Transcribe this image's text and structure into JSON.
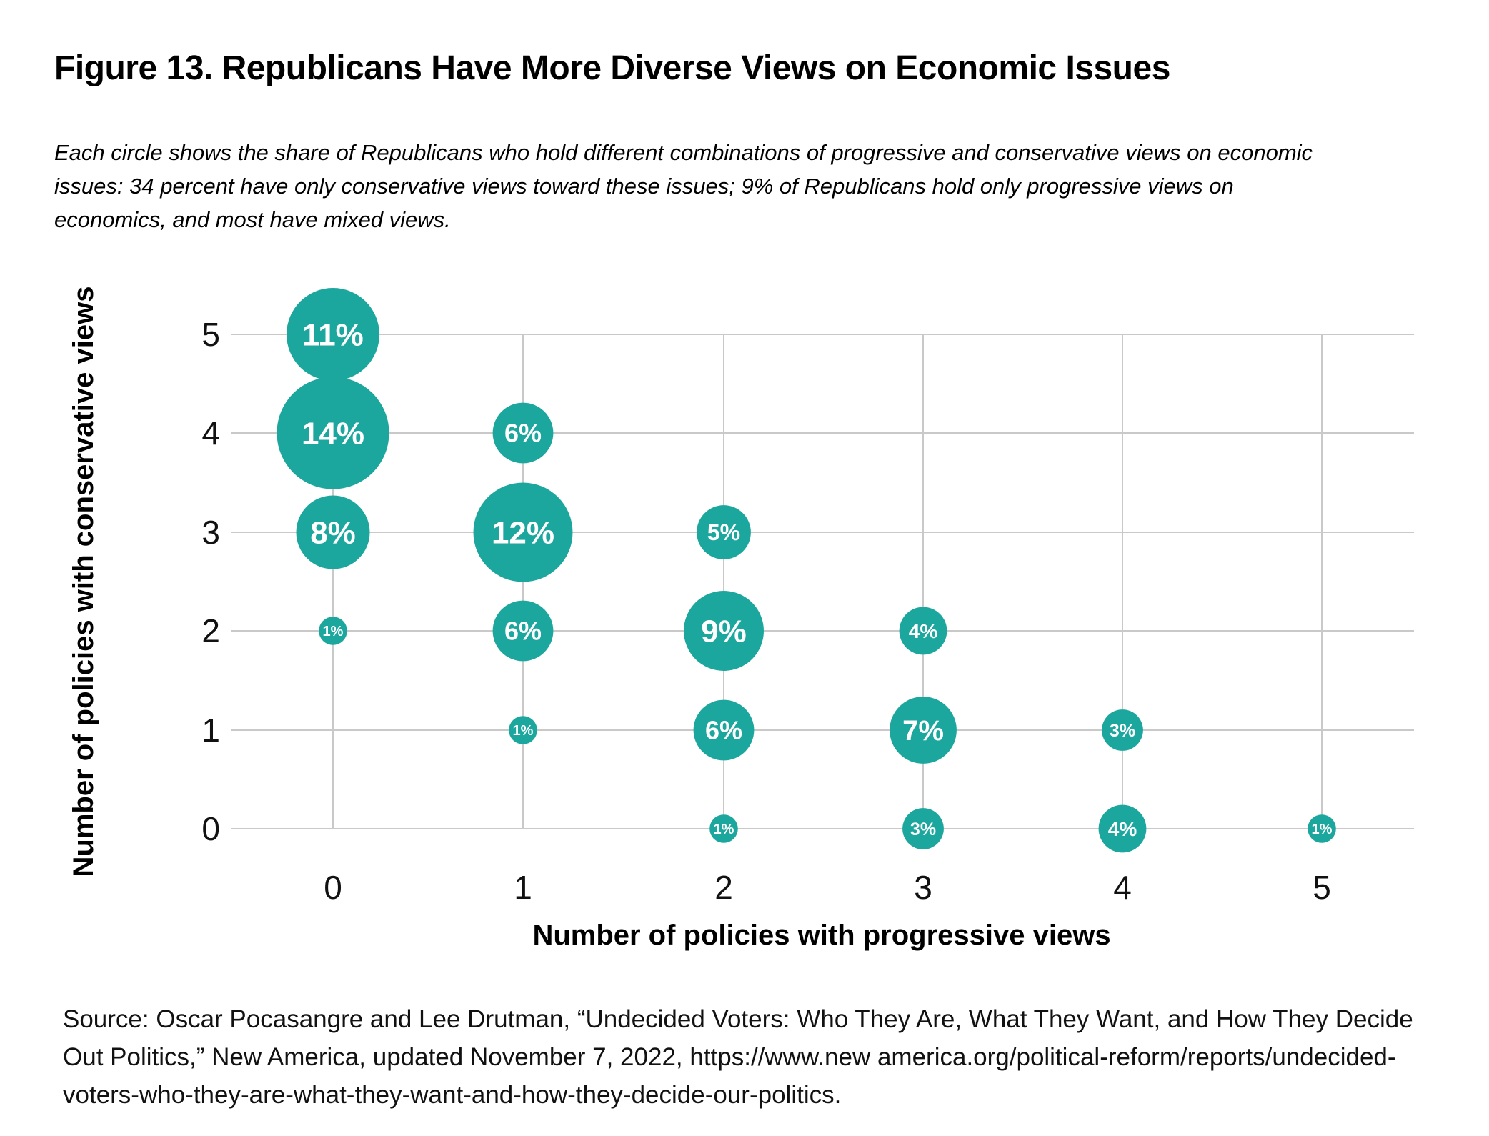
{
  "figure": {
    "title": "Figure 13. Republicans Have More Diverse Views on Economic Issues",
    "subtitle_lines": [
      "Each circle shows the share of Republicans who hold different combinations of progressive and conservative views on economic",
      "issues: 34 percent have only conservative views toward these issues; 9% of Republicans hold only progressive views on",
      "economics, and most have mixed views."
    ]
  },
  "chart_data": {
    "type": "scatter",
    "subtype": "bubble",
    "xlabel": "Number of policies with progressive views",
    "ylabel": "Number of policies with conservative views",
    "ticks": [
      "0",
      "1",
      "2",
      "3",
      "4",
      "5"
    ],
    "xlim": [
      -0.5,
      5.5
    ],
    "ylim": [
      -0.5,
      5.5
    ],
    "grid": true,
    "gridline_color": "#c9c9c9",
    "bubble_color": "#1CA79E",
    "bubble_label_color": "#ffffff",
    "points": [
      {
        "x": 0,
        "y": 5,
        "value": 11,
        "label": "11%"
      },
      {
        "x": 0,
        "y": 4,
        "value": 14,
        "label": "14%"
      },
      {
        "x": 0,
        "y": 3,
        "value": 8,
        "label": "8%"
      },
      {
        "x": 0,
        "y": 2,
        "value": 1,
        "label": "1%"
      },
      {
        "x": 1,
        "y": 4,
        "value": 6,
        "label": "6%"
      },
      {
        "x": 1,
        "y": 3,
        "value": 12,
        "label": "12%"
      },
      {
        "x": 1,
        "y": 2,
        "value": 6,
        "label": "6%"
      },
      {
        "x": 1,
        "y": 1,
        "value": 1,
        "label": "1%"
      },
      {
        "x": 2,
        "y": 3,
        "value": 5,
        "label": "5%"
      },
      {
        "x": 2,
        "y": 2,
        "value": 9,
        "label": "9%"
      },
      {
        "x": 2,
        "y": 1,
        "value": 6,
        "label": "6%"
      },
      {
        "x": 2,
        "y": 0,
        "value": 1,
        "label": "1%"
      },
      {
        "x": 3,
        "y": 2,
        "value": 4,
        "label": "4%"
      },
      {
        "x": 3,
        "y": 1,
        "value": 7,
        "label": "7%"
      },
      {
        "x": 3,
        "y": 0,
        "value": 3,
        "label": "3%"
      },
      {
        "x": 4,
        "y": 1,
        "value": 3,
        "label": "3%"
      },
      {
        "x": 4,
        "y": 0,
        "value": 4,
        "label": "4%"
      },
      {
        "x": 5,
        "y": 0,
        "value": 1,
        "label": "1%"
      }
    ]
  },
  "source": {
    "lines": [
      "Source: Oscar Pocasangre and Lee Drutman, “Undecided Voters: Who They Are, What They Want, and How They Decide",
      "Out Politics,” New America, updated November 7, 2022, https://www.new america.org/political-reform/reports/undecided-",
      "voters-who-they-are-what-they-want-and-how-they-decide-our-politics."
    ]
  }
}
